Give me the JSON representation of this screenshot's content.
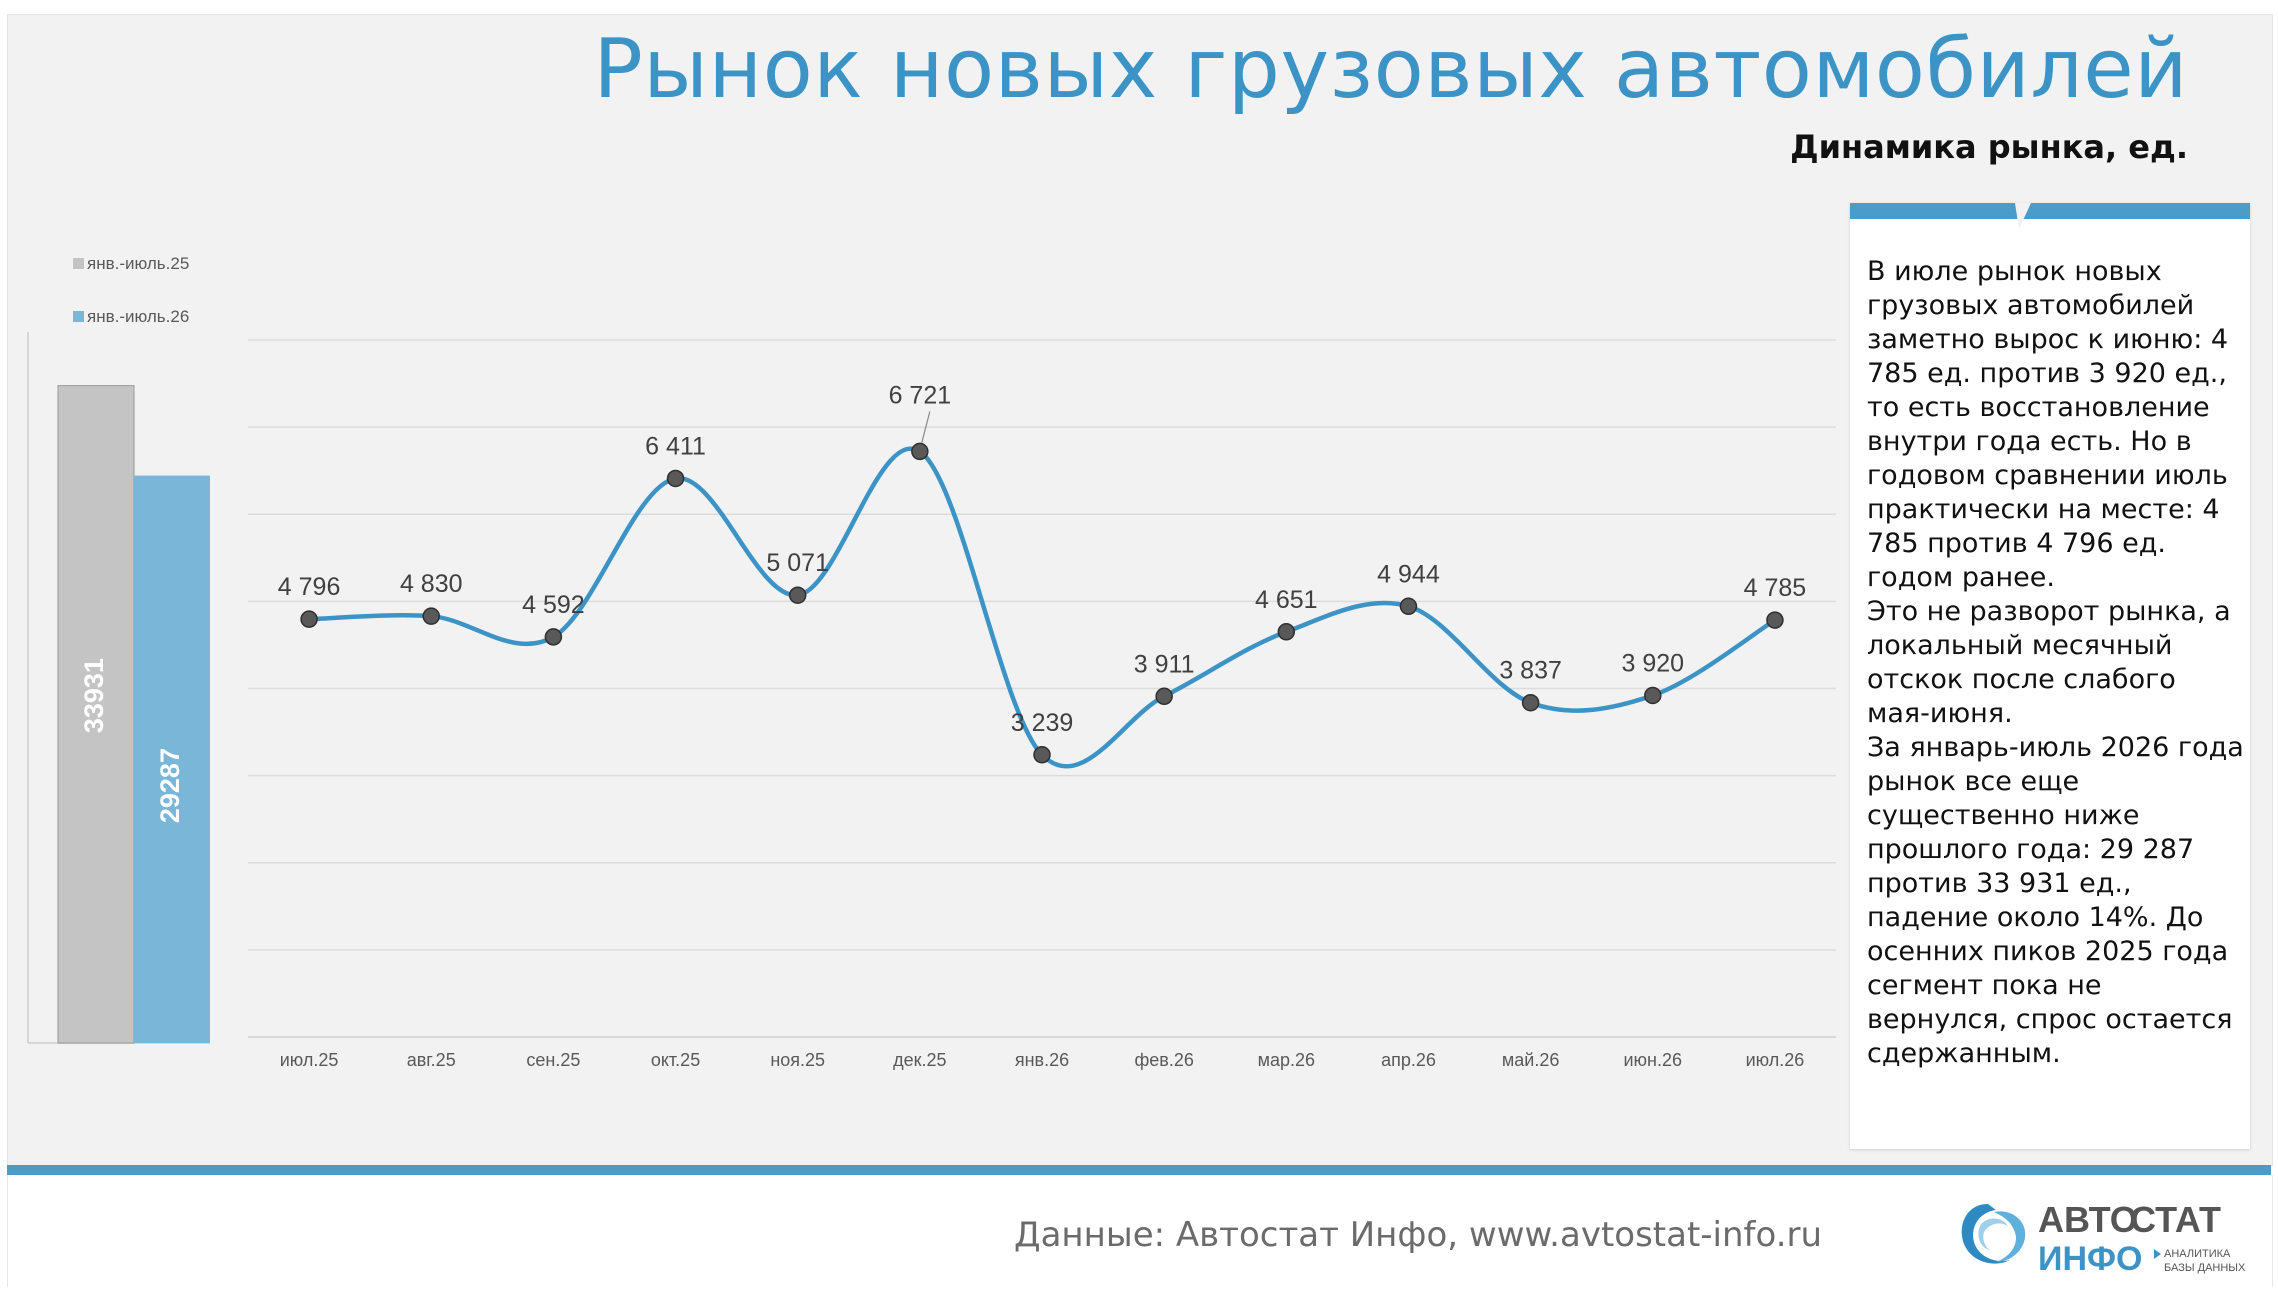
{
  "title": "Рынок новых грузовых автомобилей",
  "subtitle": "Динамика рынка, ед.",
  "commentary": "В июле рынок новых грузовых автомобилей заметно вырос к июню: 4 785 ед. против 3 920 ед., то есть восстановление внутри года есть. Но в годовом сравнении июль практически на месте: 4 785 против 4 796 ед. годом ранее.\nЭто не разворот рынка, а локальный месячный отскок после слабого мая-июня.\nЗа январь-июль 2026 года рынок все еще существенно ниже прошлого года: 29 287 против 33 931 ед., падение около 14%. До осенних пиков 2025 года сегмент пока не вернулся, спрос остается сдержанным.",
  "source": "Данные: Автостат Инфо, www.avtostat-info.ru",
  "logo": {
    "brand_top_a": "АВТО",
    "brand_top_b": "СТАТ",
    "brand_bottom": "ИНФО",
    "tagline_1": "АНАЛИТИКА",
    "tagline_2": "БАЗЫ ДАННЫХ"
  },
  "colors": {
    "accent": "#4a9cc9",
    "title": "#3c93c6",
    "bar_prev": "#c4c4c4",
    "bar_curr": "#7ab6d8",
    "line": "#3c93c6",
    "marker": "#595959"
  },
  "chart_data": [
    {
      "type": "bar",
      "categories": [
        ""
      ],
      "series": [
        {
          "name": "янв.-июль.25",
          "values": [
            33931
          ],
          "labels": [
            "33931"
          ]
        },
        {
          "name": "янв.-июль.26",
          "values": [
            29287
          ],
          "labels": [
            "29287"
          ]
        }
      ],
      "ylim": [
        0,
        40000
      ],
      "legend": "top-left"
    },
    {
      "type": "line",
      "smooth": true,
      "categories": [
        "июл.25",
        "авг.25",
        "сен.25",
        "окт.25",
        "ноя.25",
        "дек.25",
        "янв.26",
        "фев.26",
        "мар.26",
        "апр.26",
        "май.26",
        "июн.26",
        "июл.26"
      ],
      "values": [
        4796,
        4830,
        4592,
        6411,
        5071,
        6721,
        3239,
        3911,
        4651,
        4944,
        3837,
        3920,
        4785
      ],
      "labels": [
        "4 796",
        "4 830",
        "4 592",
        "6 411",
        "5 071",
        "6 721",
        "3 239",
        "3 911",
        "4 651",
        "4 944",
        "3 837",
        "3 920",
        "4 785"
      ],
      "ylim": [
        0,
        8000
      ],
      "grid": true
    }
  ]
}
